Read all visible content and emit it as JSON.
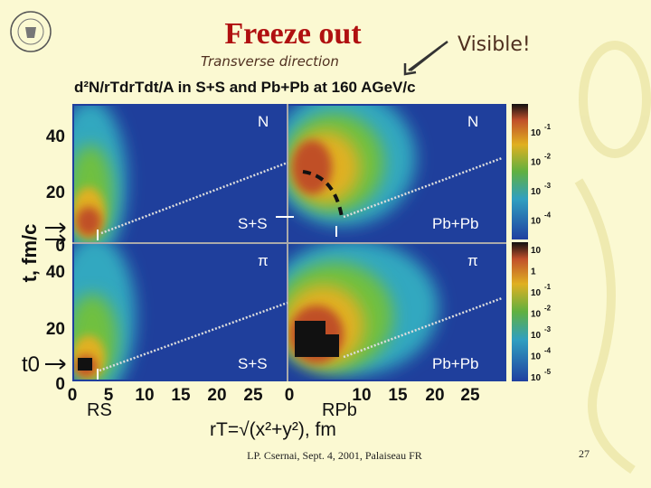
{
  "header": {
    "title": "Freeze out",
    "note": "Transverse direction",
    "callout": "Visible!"
  },
  "figure": {
    "title": "d²N/rTdrTdt/A in S+S and Pb+Pb at 160 AGeV/c",
    "panels": [
      {
        "particle": "N",
        "system": "S+S"
      },
      {
        "particle": "N",
        "system": "Pb+Pb"
      },
      {
        "particle": "π",
        "system": "S+S"
      },
      {
        "particle": "π",
        "system": "Pb+Pb"
      }
    ],
    "y_ticks_top": [
      "40",
      "20",
      "0"
    ],
    "y_ticks_bottom": [
      "40",
      "20",
      "0"
    ],
    "x_ticks_left": [
      "0",
      "5",
      "10",
      "15",
      "20",
      "25"
    ],
    "x_ticks_right": [
      "0",
      "10",
      "15",
      "20",
      "25"
    ],
    "y_label": "t, fm/c",
    "t0_label": "t0",
    "rs_label": "RS",
    "rpb_label": "RPb",
    "x_label": "rT=√(x²+y²), fm",
    "colorbar_top": [
      {
        "base": "10",
        "exp": "-1"
      },
      {
        "base": "10",
        "exp": "-2"
      },
      {
        "base": "10",
        "exp": "-3"
      },
      {
        "base": "10",
        "exp": "-4"
      }
    ],
    "colorbar_bottom": [
      {
        "base": "10"
      },
      {
        "base": "1"
      },
      {
        "base": "10",
        "exp": "-1"
      },
      {
        "base": "10",
        "exp": "-2"
      },
      {
        "base": "10",
        "exp": "-3"
      },
      {
        "base": "10",
        "exp": "-4"
      },
      {
        "base": "10",
        "exp": "-5"
      }
    ]
  },
  "footer": {
    "text": "LP. Csernai, Sept. 4, 2001, Palaiseau FR",
    "page": "27"
  }
}
